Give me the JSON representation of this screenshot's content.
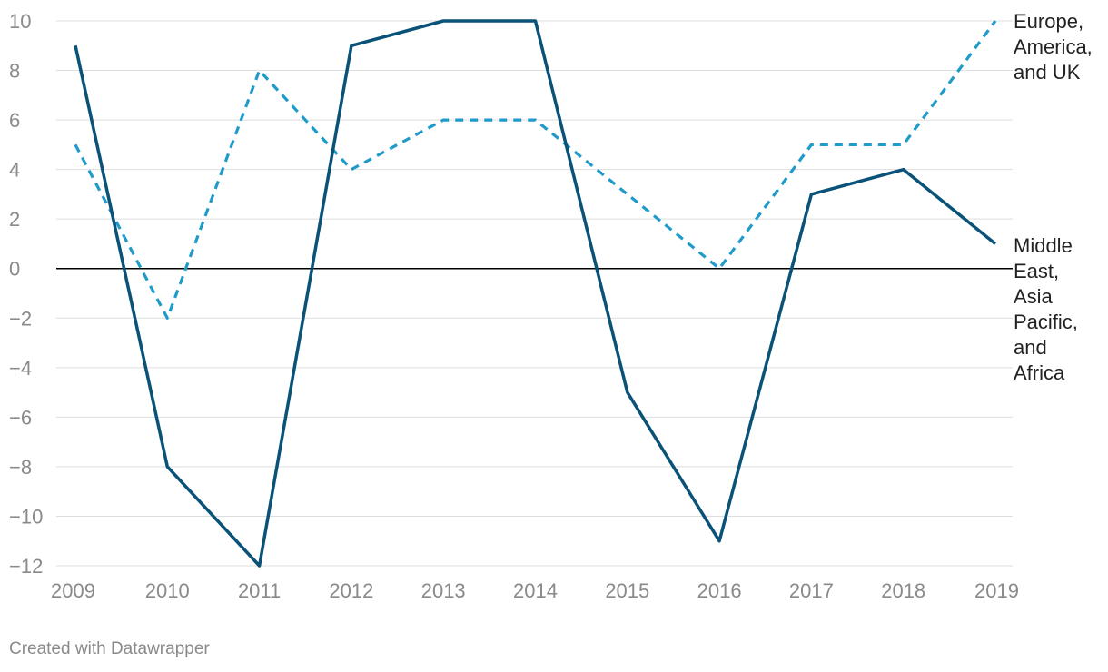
{
  "chart_data": {
    "type": "line",
    "categories": [
      "2009",
      "2010",
      "2011",
      "2012",
      "2013",
      "2014",
      "2015",
      "2016",
      "2017",
      "2018",
      "2019"
    ],
    "ylim": [
      -12,
      10
    ],
    "yticks": [
      10,
      8,
      6,
      4,
      2,
      0,
      -2,
      -4,
      -6,
      -8,
      -10,
      -12
    ],
    "ytick_labels": [
      "10",
      "8",
      "6",
      "4",
      "2",
      "0",
      "−2",
      "−4",
      "−6",
      "−8",
      "−10",
      "−12"
    ],
    "grid": true,
    "legend": "direct labels at right end of lines",
    "series": [
      {
        "name": "Middle East, Asia Pacific, and Africa",
        "label_lines": [
          "Middle",
          "East,",
          "Asia",
          "Pacific,",
          "and",
          "Africa"
        ],
        "values": [
          9,
          -8,
          -12,
          9,
          10,
          10,
          -5,
          -11,
          3,
          4,
          1
        ],
        "color": "#0b5278",
        "style": "solid"
      },
      {
        "name": "Europe, America, and UK",
        "label_lines": [
          "Europe,",
          "America,",
          "and UK"
        ],
        "values": [
          5,
          -2,
          8,
          4,
          6,
          6,
          3,
          0,
          5,
          5,
          10
        ],
        "color": "#1f9bc9",
        "style": "dashed"
      }
    ]
  },
  "credit": "Created with Datawrapper",
  "colors": {
    "grid": "#dddddd",
    "zero_line": "#000000",
    "tick_text": "#8a8a8a"
  }
}
